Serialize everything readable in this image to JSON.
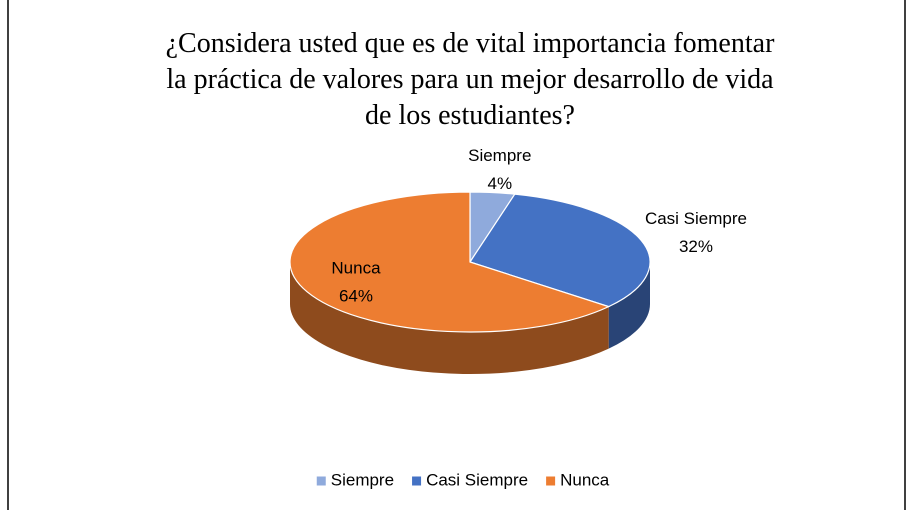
{
  "chart_data": {
    "type": "pie3d",
    "title": "¿Considera usted que es de vital importancia fomentar\nla práctica de valores para un mejor desarrollo de vida\nde los estudiantes?",
    "categories": [
      "Siempre",
      "Casi Siempre",
      "Nunca"
    ],
    "values": [
      4,
      32,
      64
    ],
    "value_labels": [
      "4%",
      "32%",
      "64%"
    ],
    "colors": [
      "#8faadc",
      "#4472c4",
      "#ed7d31"
    ],
    "legend": "bottom"
  }
}
